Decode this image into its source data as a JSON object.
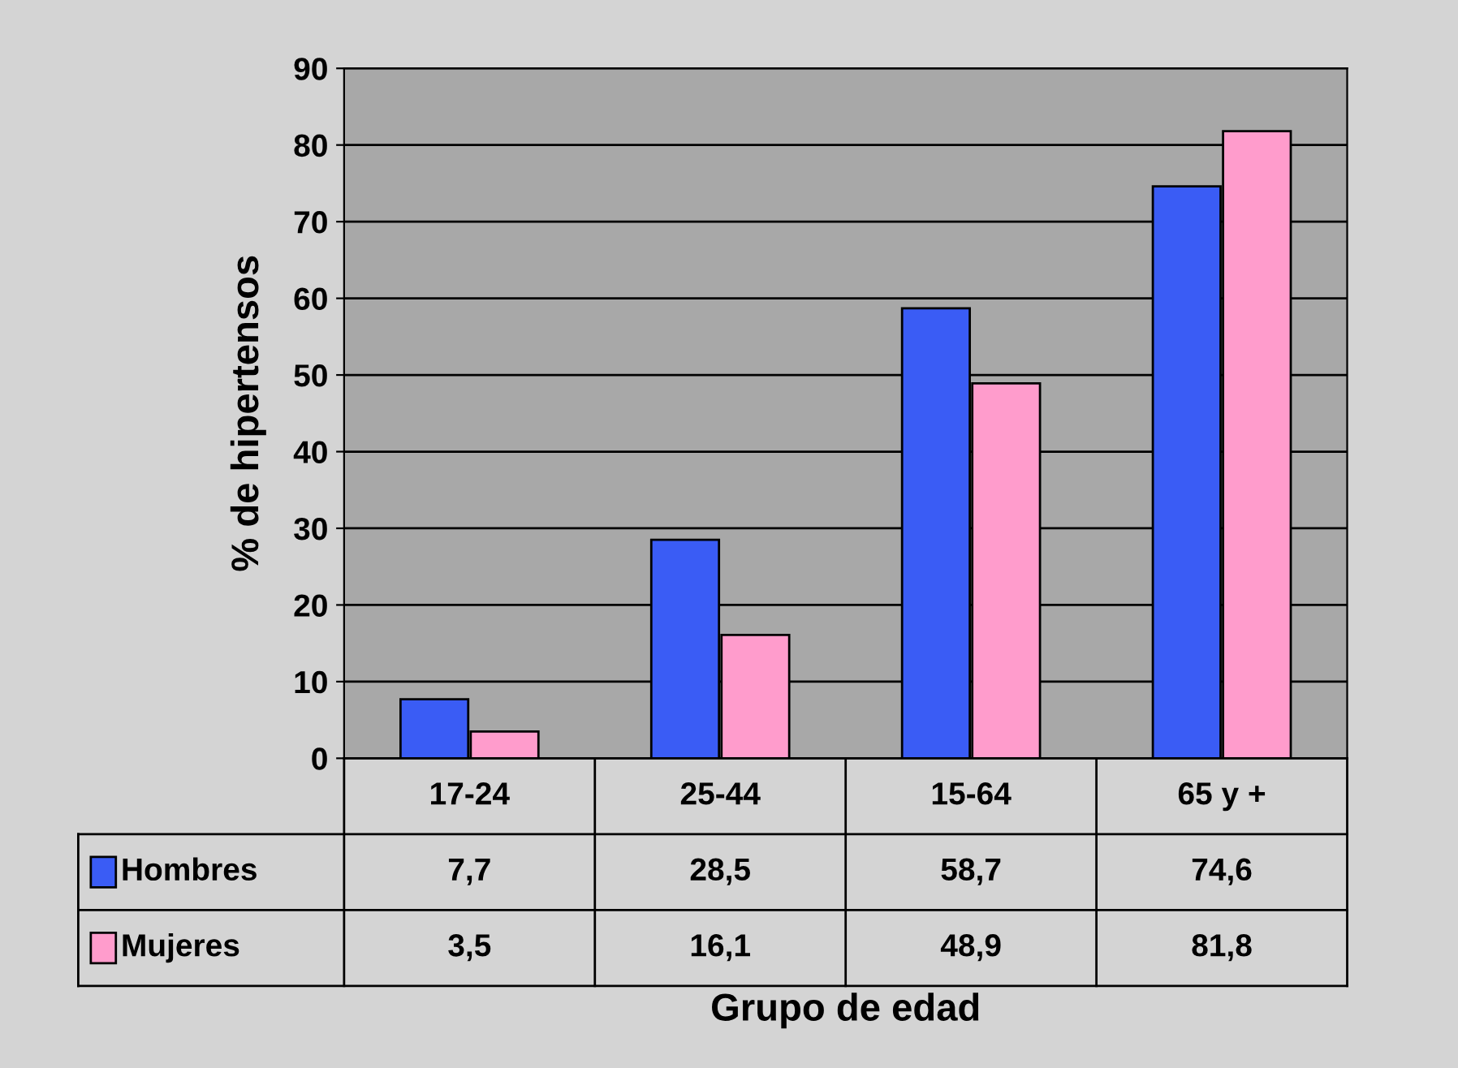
{
  "chart_data": {
    "type": "bar",
    "xlabel": "Grupo de edad",
    "ylabel": "% de hipertensos",
    "categories": [
      "17-24",
      "25-44",
      "15-64",
      "65 y +"
    ],
    "series": [
      {
        "name": "Hombres",
        "color": "#3a5cf5",
        "values": [
          7.7,
          28.5,
          58.7,
          74.6
        ],
        "value_labels": [
          "7,7",
          "28,5",
          "58,7",
          "74,6"
        ]
      },
      {
        "name": "Mujeres",
        "color": "#ff9ccc",
        "values": [
          3.5,
          16.1,
          48.9,
          81.8
        ],
        "value_labels": [
          "3,5",
          "16,1",
          "48,9",
          "81,8"
        ]
      }
    ],
    "ylim": [
      0,
      90
    ],
    "yticks": [
      0,
      10,
      20,
      30,
      40,
      50,
      60,
      70,
      80,
      90
    ],
    "grid": "y",
    "legend": "bottom"
  }
}
